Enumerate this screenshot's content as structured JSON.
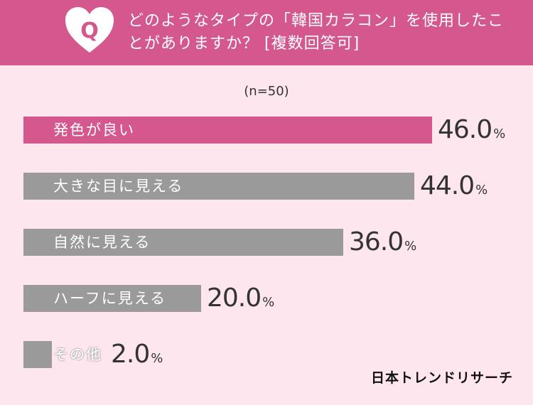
{
  "header": {
    "q_letter": "Q",
    "question": "どのようなタイプの「韓国カラコン」を使用したことがありますか？ [複数回答可]"
  },
  "n_label": "(n=50)",
  "chart_data": {
    "type": "bar",
    "orientation": "horizontal",
    "categories": [
      "発色が良い",
      "大きな目に見える",
      "自然に見える",
      "ハーフに見える",
      "その他"
    ],
    "values": [
      46.0,
      44.0,
      36.0,
      20.0,
      2.0
    ],
    "value_labels": [
      "46.0",
      "44.0",
      "36.0",
      "20.0",
      "2.0"
    ],
    "unit": "%",
    "xlim": [
      0,
      50
    ],
    "colors": {
      "highlight": "#d4578d",
      "default": "#9a9a9a"
    },
    "highlight_index": 0
  },
  "brand": "日本トレンドリサーチ",
  "colors": {
    "header": "#d4578d",
    "background": "#fde6ee"
  }
}
